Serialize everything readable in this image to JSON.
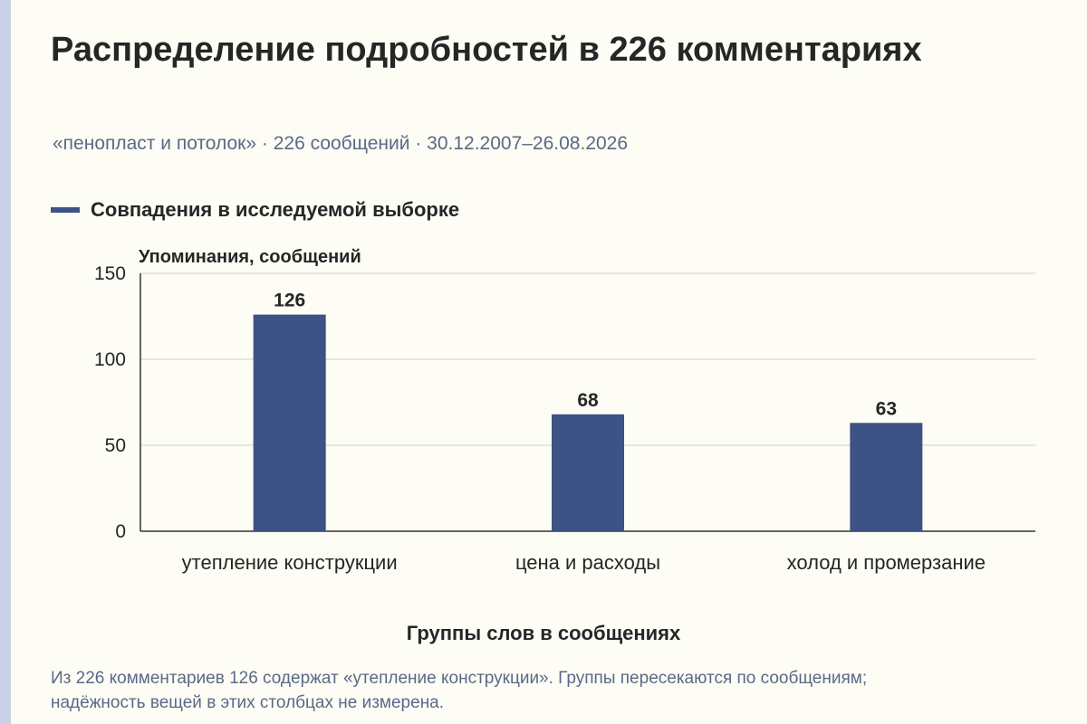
{
  "page": {
    "title": "Распределение подробностей в 226 комментариях",
    "subtitle": "«пенопласт и потолок» · 226 сообщений · 30.12.2007–26.08.2026",
    "footnote": "Из 226 комментариев 126 содержат «утепление конструкции». Группы пересекаются по сообщениям; надёжность вещей в этих столбцах не измерена."
  },
  "colors": {
    "background": "#fdfcf5",
    "bar": "#3d5285",
    "grid": "#cfcfcf",
    "axis": "#333333",
    "text": "#262626",
    "muted": "#5a6a86",
    "stripe": "#c8d1e8"
  },
  "chart_data": {
    "type": "bar",
    "title": "Распределение подробностей в 226 комментариях",
    "subtitle": "«пенопласт и потолок» · 226 сообщений · 30.12.2007–26.08.2026",
    "categories": [
      "утепление конструкции",
      "цена и расходы",
      "холод и промерзание"
    ],
    "series": [
      {
        "name": "Совпадения в исследуемой выборке",
        "values": [
          126,
          68,
          63
        ]
      }
    ],
    "data_labels": [
      "126",
      "68",
      "63"
    ],
    "xlabel": "Группы слов в сообщениях",
    "ylabel": "Упоминания, сообщений",
    "ylim": [
      0,
      150
    ],
    "yticks": [
      0,
      50,
      100,
      150
    ],
    "grid": true,
    "legend": "top-left"
  }
}
